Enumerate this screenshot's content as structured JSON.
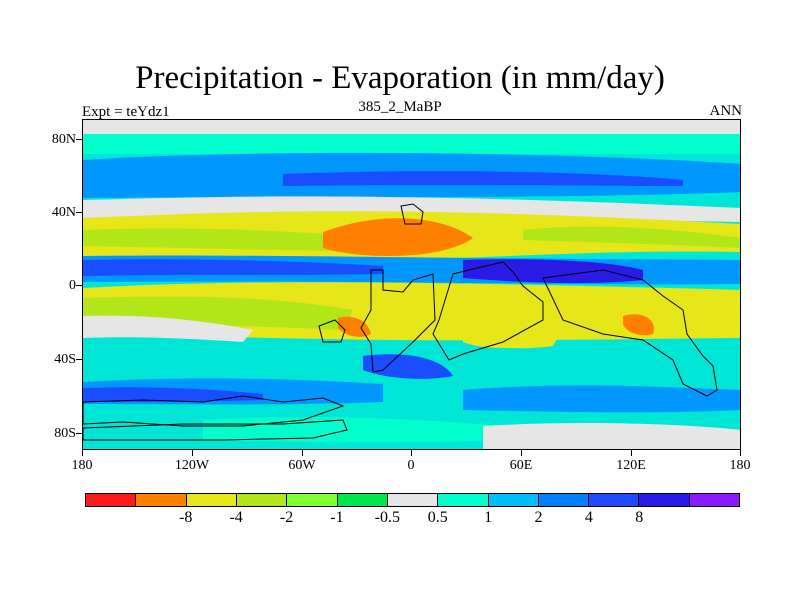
{
  "title": "Precipitation - Evaporation (in mm/day)",
  "left_label": "Expt = teYdz1",
  "center_label": "385_2_MaBP",
  "right_label": "ANN",
  "lat_ticks": [
    "80N",
    "40N",
    "0",
    "40S",
    "80S"
  ],
  "lon_ticks": [
    "180",
    "120W",
    "60W",
    "0",
    "60E",
    "120E",
    "180"
  ],
  "colorbar": {
    "colors": [
      "#ff1a1a",
      "#ff8000",
      "#e6e619",
      "#b3e619",
      "#80ff33",
      "#00e64d",
      "#e6e6e6",
      "#00ffcc",
      "#00bfff",
      "#0080ff",
      "#1a4dff",
      "#2a1ae6",
      "#8c1aff"
    ],
    "labels": [
      "-8",
      "-4",
      "-2",
      "-1",
      "-0.5",
      "0.5",
      "1",
      "2",
      "4",
      "8"
    ]
  },
  "palette": {
    "ocean_default": "#00e6d6",
    "land_outline": "#000000"
  }
}
